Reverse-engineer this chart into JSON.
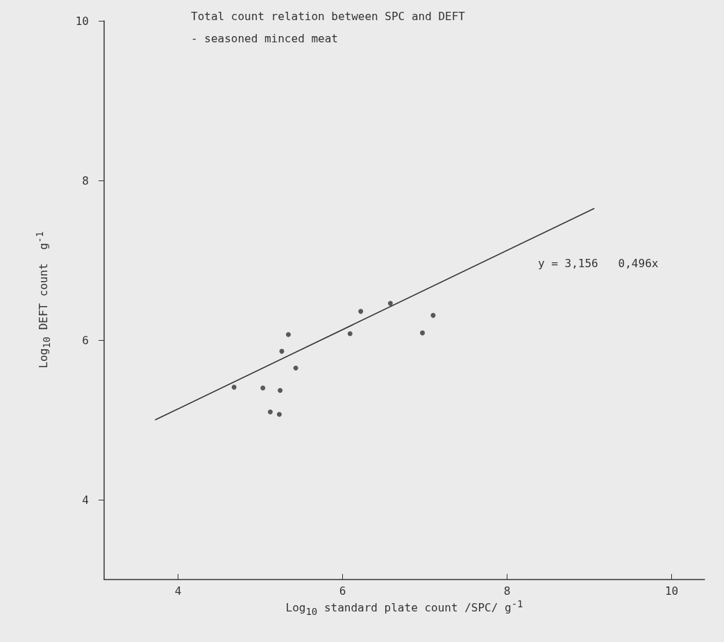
{
  "chart_data": {
    "type": "scatter",
    "title": "Total count relation between SPC and DEFT",
    "subtitle": "- seasoned minced meat",
    "xlabel": "Log$_{10}$ standard plate count /SPC/ g$^{-1}$",
    "ylabel": "Log$_{10}$ DEFT count  g$^{-1}$",
    "xlim": [
      3.1,
      10.4
    ],
    "xticks": [
      4,
      6,
      8,
      10
    ],
    "ylim": [
      3,
      10
    ],
    "yticks": [
      4,
      6,
      8,
      10
    ],
    "grid": false,
    "series": [
      {
        "color": "#333333",
        "marker": "circle",
        "x": [
          4.68,
          5.03,
          5.24,
          5.12,
          5.23,
          5.26,
          5.34,
          5.43,
          6.09,
          6.22,
          6.58,
          6.97,
          7.1
        ],
        "values": [
          5.41,
          5.4,
          5.37,
          5.1,
          5.07,
          5.86,
          6.07,
          5.65,
          6.08,
          6.36,
          6.46,
          6.09,
          6.31
        ]
      },
      {
        "type": "line",
        "marker": "none",
        "color": "#333333",
        "x": [
          3.72,
          9.06
        ],
        "values": [
          5.0,
          7.65
        ]
      }
    ],
    "annotations": [
      "y = 3,156   0,496x"
    ]
  }
}
